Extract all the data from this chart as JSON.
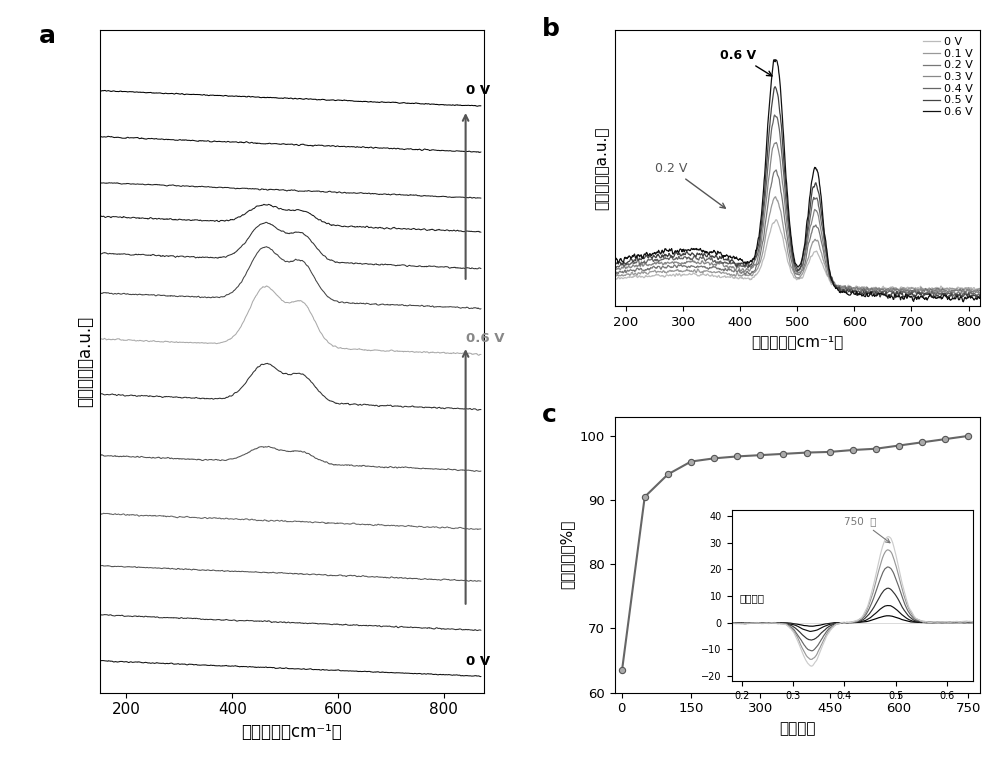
{
  "panel_a": {
    "xlabel": "拉曼位移（cm⁻¹）",
    "ylabel": "相对强度（a.u.）",
    "label_top": "0 V",
    "label_mid": "0.6 V",
    "label_bot": "0 V"
  },
  "panel_b": {
    "xlabel": "拉曼位移（cm⁻¹）",
    "ylabel": "相对强度（a.u.）",
    "legend_labels": [
      "0 V",
      "0.1 V",
      "0.2 V",
      "0.3 V",
      "0.4 V",
      "0.5 V",
      "0.6 V"
    ],
    "legend_colors": [
      "#bbbbbb",
      "#999999",
      "#777777",
      "#888888",
      "#666666",
      "#444444",
      "#111111"
    ]
  },
  "panel_c": {
    "xlabel": "循环圈数",
    "ylabel": "活化程度（%）",
    "x_data": [
      1,
      50,
      100,
      150,
      200,
      250,
      300,
      350,
      400,
      450,
      500,
      550,
      600,
      650,
      700,
      750
    ],
    "y_data": [
      63.5,
      90.5,
      94.0,
      96.0,
      96.5,
      96.8,
      97.0,
      97.2,
      97.4,
      97.5,
      97.8,
      98.0,
      98.5,
      99.0,
      99.5,
      100.0
    ],
    "inset_label_750": "750  圈",
    "inset_label_init": "起始状态"
  }
}
